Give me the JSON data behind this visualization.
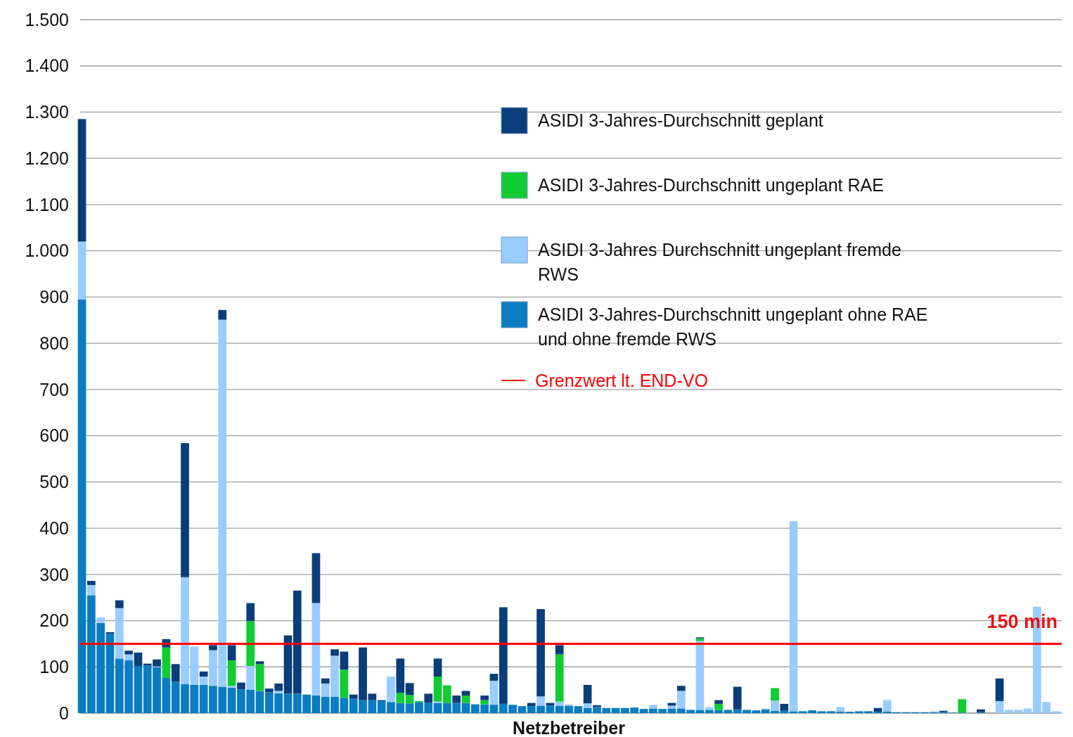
{
  "chart_data": {
    "type": "bar",
    "stacked": true,
    "xlabel": "Netzbetreiber",
    "categories": [
      null,
      null,
      null,
      null,
      null,
      null,
      null,
      null,
      null,
      null,
      null,
      null,
      null,
      null,
      null,
      null,
      null,
      null,
      null,
      null,
      null,
      null,
      null,
      null,
      null,
      null,
      null,
      null,
      null,
      null,
      null,
      null,
      null,
      null,
      null,
      null,
      null,
      null,
      null,
      null,
      null,
      null,
      null,
      null,
      null,
      null,
      null,
      null,
      null,
      null,
      null,
      null,
      null,
      null,
      null,
      null,
      null,
      null,
      null,
      null,
      null,
      null,
      null,
      null,
      null,
      null,
      null,
      null,
      null,
      null,
      null,
      null,
      null,
      null,
      null,
      null,
      null,
      null,
      null,
      null,
      null,
      null,
      null,
      null,
      null,
      null,
      null,
      null,
      null,
      null,
      null,
      null,
      null,
      null,
      null,
      null,
      null,
      null,
      null,
      null,
      null,
      null,
      null,
      null,
      null
    ],
    "series": [
      {
        "name": "ASIDI 3-Jahres-Durchschnitt ungeplant ohne RAE und ohne fremde RWS",
        "color": "#0a7cc1",
        "values": [
          895,
          255,
          195,
          171,
          118,
          114,
          102,
          103,
          99,
          76,
          68,
          63,
          61,
          61,
          59,
          57,
          55,
          51,
          51,
          48,
          45,
          43,
          42,
          42,
          40,
          38,
          35,
          35,
          33,
          31,
          28,
          28,
          26,
          24,
          22,
          21,
          24,
          22,
          22,
          22,
          22,
          22,
          19,
          19,
          18,
          20,
          18,
          15,
          15,
          16,
          16,
          16,
          16,
          15,
          11,
          13,
          11,
          11,
          11,
          12,
          9,
          10,
          9,
          10,
          10,
          7,
          7,
          7,
          7,
          7,
          8,
          7,
          6,
          8,
          5,
          5,
          4,
          4,
          6,
          4,
          4,
          3,
          3,
          4,
          4,
          3,
          3,
          2,
          2,
          2,
          2,
          2,
          2,
          1,
          1,
          0,
          2,
          0,
          0,
          0,
          0,
          0,
          0,
          0,
          0
        ]
      },
      {
        "name": "ASIDI 3-Jahres Durchschnitt ungeplant fremde RWS",
        "color": "#99ccff",
        "values": [
          125,
          22,
          12,
          0,
          109,
          13,
          0,
          0,
          2,
          0,
          0,
          231,
          83,
          18,
          77,
          794,
          4,
          0,
          51,
          0,
          0,
          5,
          0,
          0,
          0,
          200,
          29,
          89,
          0,
          0,
          0,
          0,
          0,
          55,
          0,
          0,
          0,
          0,
          3,
          0,
          0,
          0,
          0,
          0,
          52,
          0,
          0,
          0,
          0,
          20,
          0,
          9,
          3,
          0,
          10,
          0,
          0,
          0,
          0,
          0,
          0,
          8,
          0,
          6,
          38,
          0,
          149,
          6,
          0,
          0,
          0,
          0,
          0,
          2,
          22,
          0,
          411,
          0,
          0,
          0,
          0,
          10,
          0,
          0,
          0,
          0,
          25,
          0,
          0,
          0,
          0,
          2,
          0,
          0,
          0,
          0,
          0,
          0,
          26,
          7,
          7,
          10,
          230,
          24,
          4
        ]
      },
      {
        "name": "ASIDI 3-Jahres-Durchschnitt ungeplant RAE",
        "color": "#11cc33",
        "values": [
          0,
          0,
          0,
          0,
          0,
          0,
          0,
          0,
          0,
          66,
          0,
          0,
          0,
          0,
          0,
          0,
          55,
          0,
          97,
          58,
          0,
          0,
          0,
          0,
          0,
          0,
          0,
          0,
          61,
          0,
          0,
          0,
          0,
          0,
          22,
          18,
          2,
          0,
          54,
          38,
          0,
          16,
          0,
          9,
          0,
          0,
          0,
          0,
          0,
          0,
          0,
          102,
          0,
          0,
          0,
          0,
          0,
          0,
          0,
          0,
          0,
          0,
          0,
          0,
          0,
          0,
          6,
          0,
          13,
          0,
          0,
          0,
          0,
          0,
          27,
          0,
          0,
          0,
          0,
          0,
          0,
          0,
          0,
          0,
          0,
          0,
          0,
          0,
          0,
          0,
          0,
          0,
          0,
          0,
          29,
          0,
          0,
          0,
          0,
          0,
          0,
          0,
          0,
          0,
          0
        ]
      },
      {
        "name": "ASIDI 3-Jahres-Durchschnitt geplant",
        "color": "#0a3d7a",
        "values": [
          265,
          9,
          0,
          4,
          17,
          8,
          29,
          4,
          15,
          18,
          38,
          290,
          0,
          11,
          11,
          21,
          33,
          15,
          39,
          6,
          8,
          16,
          126,
          223,
          0,
          108,
          11,
          14,
          39,
          9,
          114,
          14,
          2,
          0,
          74,
          26,
          0,
          20,
          39,
          0,
          16,
          10,
          0,
          10,
          15,
          209,
          0,
          0,
          7,
          189,
          6,
          20,
          0,
          0,
          40,
          4,
          0,
          0,
          0,
          0,
          0,
          0,
          0,
          6,
          11,
          0,
          2,
          0,
          8,
          0,
          49,
          0,
          0,
          0,
          0,
          15,
          0,
          0,
          0,
          0,
          0,
          0,
          0,
          0,
          0,
          8,
          0,
          0,
          0,
          0,
          0,
          0,
          3,
          0,
          0,
          0,
          6,
          0,
          49,
          0,
          0,
          0,
          0,
          0,
          0
        ]
      }
    ],
    "ylim": [
      0,
      1500
    ],
    "yticks": [
      0,
      100,
      200,
      300,
      400,
      500,
      600,
      700,
      800,
      900,
      {
        "value": 1000,
        "label": "1.000"
      },
      {
        "value": 1100,
        "label": "1.100"
      },
      {
        "value": 1200,
        "label": "1.200"
      },
      {
        "value": 1300,
        "label": "1.300"
      },
      {
        "value": 1400,
        "label": "1.400"
      },
      {
        "value": 1500,
        "label": "1.500"
      }
    ],
    "grid": "y",
    "legend": "top right",
    "ref_lines": [
      {
        "axis": "y",
        "value": 150,
        "label": "Grenzwert lt. END-VO",
        "color": "#ff0000"
      }
    ],
    "annotations": [
      {
        "text": "150 min",
        "y": 150
      }
    ]
  }
}
